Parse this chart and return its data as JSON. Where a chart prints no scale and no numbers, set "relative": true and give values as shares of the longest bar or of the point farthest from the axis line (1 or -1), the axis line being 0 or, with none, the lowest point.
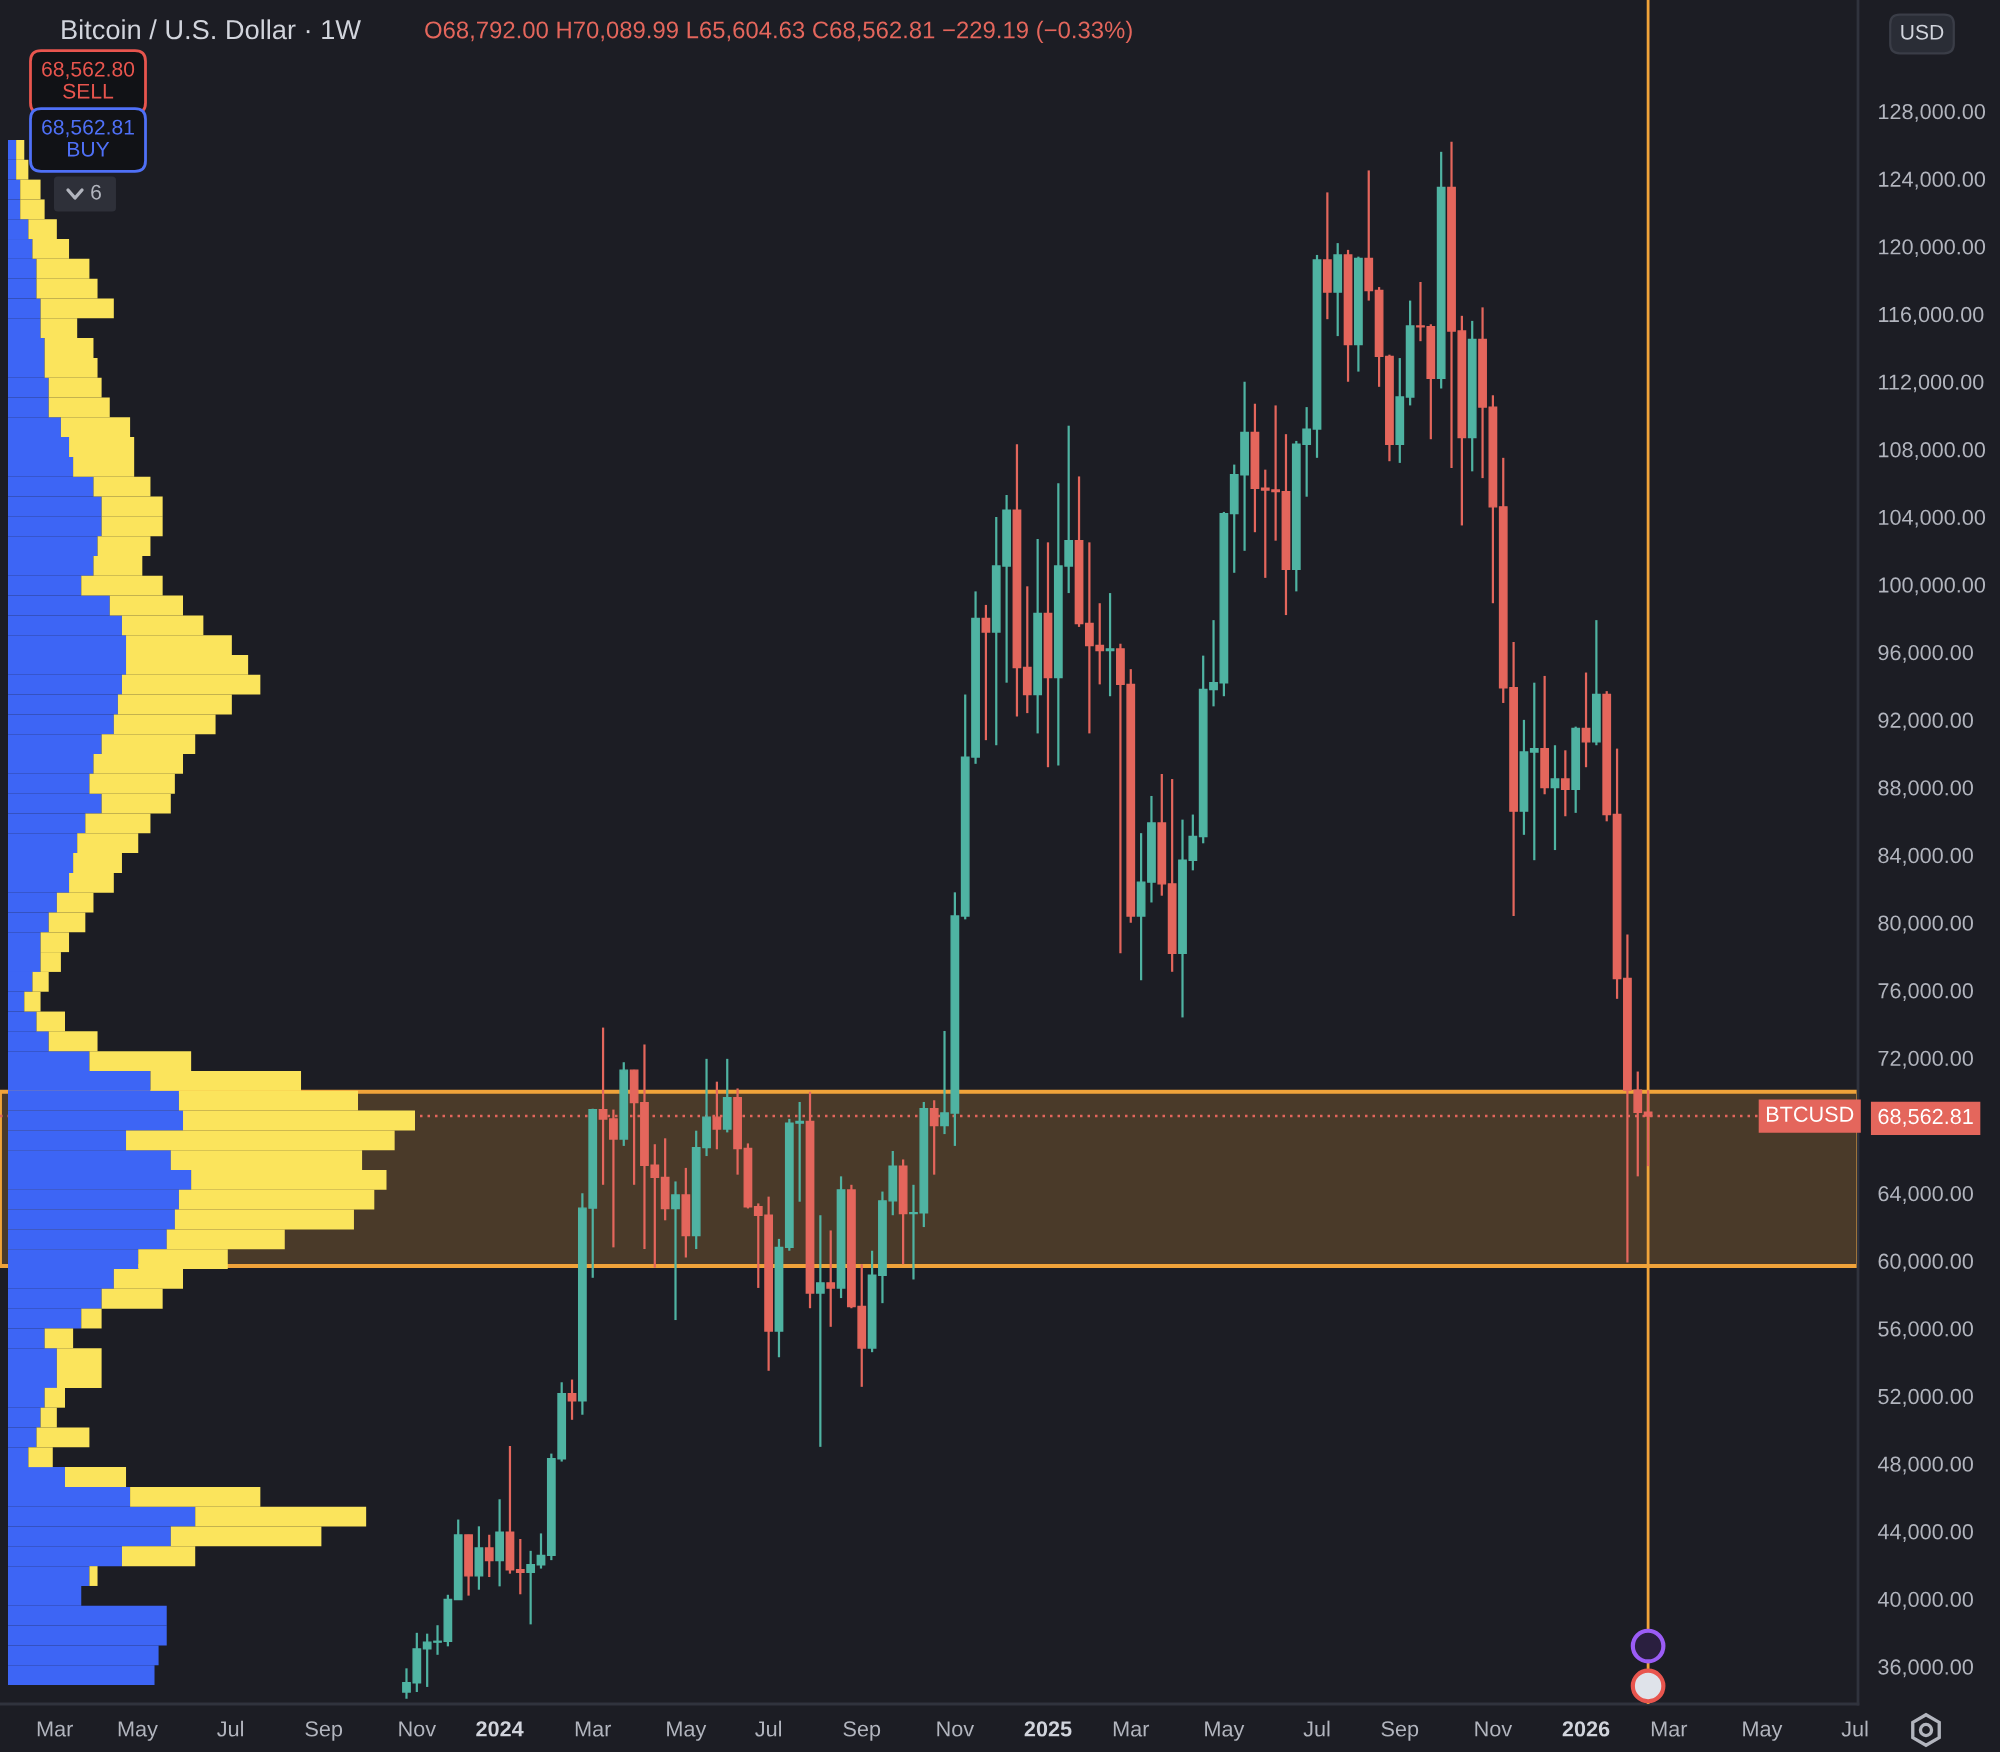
{
  "chart_data": [
    {
      "type": "candlestick",
      "title": "Bitcoin / U.S. Dollar · 1W",
      "subtitle": "O68,792.00 H70,089.99 L65,604.63 C68,562.81 −229.19 (−0.33%)",
      "x": [
        "2023-10-30",
        "2023-11-06",
        "2023-11-13",
        "2023-11-20",
        "2023-11-27",
        "2023-12-04",
        "2023-12-11",
        "2023-12-18",
        "2023-12-25",
        "2024-01-01",
        "2024-01-08",
        "2024-01-15",
        "2024-01-22",
        "2024-01-29",
        "2024-02-05",
        "2024-02-12",
        "2024-02-19",
        "2024-02-26",
        "2024-03-04",
        "2024-03-11",
        "2024-03-18",
        "2024-03-25",
        "2024-04-01",
        "2024-04-08",
        "2024-04-15",
        "2024-04-22",
        "2024-04-29",
        "2024-05-06",
        "2024-05-13",
        "2024-05-20",
        "2024-05-27",
        "2024-06-03",
        "2024-06-10",
        "2024-06-17",
        "2024-06-24",
        "2024-07-01",
        "2024-07-08",
        "2024-07-15",
        "2024-07-22",
        "2024-07-29",
        "2024-08-05",
        "2024-08-12",
        "2024-08-19",
        "2024-08-26",
        "2024-09-02",
        "2024-09-09",
        "2024-09-16",
        "2024-09-23",
        "2024-09-30",
        "2024-10-07",
        "2024-10-14",
        "2024-10-21",
        "2024-10-28",
        "2024-11-04",
        "2024-11-11",
        "2024-11-18",
        "2024-11-25",
        "2024-12-02",
        "2024-12-09",
        "2024-12-16",
        "2024-12-23",
        "2024-12-30",
        "2025-01-06",
        "2025-01-13",
        "2025-01-20",
        "2025-01-27",
        "2025-02-03",
        "2025-02-10",
        "2025-02-17",
        "2025-02-24",
        "2025-03-03",
        "2025-03-10",
        "2025-03-17",
        "2025-03-24",
        "2025-03-31",
        "2025-04-07",
        "2025-04-14",
        "2025-04-21",
        "2025-04-28",
        "2025-05-05",
        "2025-05-12",
        "2025-05-19",
        "2025-05-26",
        "2025-06-02",
        "2025-06-09",
        "2025-06-16",
        "2025-06-23",
        "2025-06-30",
        "2025-07-07",
        "2025-07-14",
        "2025-07-21",
        "2025-07-28",
        "2025-08-04",
        "2025-08-11",
        "2025-08-18",
        "2025-08-25",
        "2025-09-01",
        "2025-09-08",
        "2025-09-15",
        "2025-09-22",
        "2025-09-29",
        "2025-10-06",
        "2025-10-13",
        "2025-10-20",
        "2025-10-27",
        "2025-11-03",
        "2025-11-10",
        "2025-11-17",
        "2025-11-24",
        "2025-12-01",
        "2025-12-08",
        "2025-12-15",
        "2025-12-22",
        "2025-12-29",
        "2026-01-05",
        "2026-01-12",
        "2026-01-19",
        "2026-01-26",
        "2026-02-02",
        "2026-02-09",
        "2026-02-16"
      ],
      "ohlc": [
        [
          34500,
          35900,
          34100,
          35050
        ],
        [
          35050,
          38000,
          34500,
          37050
        ],
        [
          37050,
          37950,
          34800,
          37450
        ],
        [
          37450,
          38450,
          36700,
          37500
        ],
        [
          37500,
          40250,
          37200,
          39970
        ],
        [
          39970,
          44700,
          39950,
          43790
        ],
        [
          43790,
          43800,
          40200,
          41370
        ],
        [
          41370,
          44300,
          40550,
          43020
        ],
        [
          43020,
          43800,
          41300,
          42270
        ],
        [
          42270,
          45900,
          40750,
          43950
        ],
        [
          43950,
          49050,
          41500,
          41730
        ],
        [
          41730,
          43550,
          40280,
          41580
        ],
        [
          41580,
          42850,
          38500,
          42030
        ],
        [
          42030,
          43880,
          41800,
          42580
        ],
        [
          42580,
          48600,
          42300,
          48300
        ],
        [
          48300,
          52820,
          48130,
          52140
        ],
        [
          52140,
          52980,
          50600,
          51730
        ],
        [
          51730,
          64000,
          50900,
          63120
        ],
        [
          63120,
          69000,
          59000,
          68950
        ],
        [
          68950,
          73800,
          64500,
          68390
        ],
        [
          68390,
          68950,
          60800,
          67210
        ],
        [
          67210,
          71750,
          66800,
          71280
        ],
        [
          71280,
          71300,
          64500,
          69360
        ],
        [
          69360,
          72800,
          60700,
          65660
        ],
        [
          65660,
          66900,
          59600,
          64940
        ],
        [
          64940,
          67250,
          62400,
          63100
        ],
        [
          63100,
          64700,
          56500,
          63900
        ],
        [
          63900,
          65500,
          60200,
          61500
        ],
        [
          61500,
          67700,
          60700,
          66700
        ],
        [
          66700,
          71950,
          66200,
          68500
        ],
        [
          68500,
          70600,
          66600,
          67800
        ],
        [
          67800,
          71950,
          67600,
          69650
        ],
        [
          69650,
          70200,
          65100,
          66650
        ],
        [
          66650,
          66950,
          63100,
          63200
        ],
        [
          63200,
          63400,
          58400,
          62700
        ],
        [
          62700,
          63800,
          53500,
          55850
        ],
        [
          55850,
          61300,
          54300,
          60800
        ],
        [
          60800,
          68400,
          60600,
          68150
        ],
        [
          68150,
          69400,
          63500,
          68250
        ],
        [
          68250,
          70000,
          57200,
          58100
        ],
        [
          58100,
          62700,
          49000,
          58700
        ],
        [
          58700,
          61800,
          56100,
          58400
        ],
        [
          58400,
          65000,
          57800,
          64200
        ],
        [
          64200,
          64500,
          57200,
          57300
        ],
        [
          57300,
          59800,
          52550,
          54850
        ],
        [
          54850,
          60600,
          54600,
          59150
        ],
        [
          59150,
          64100,
          57500,
          63550
        ],
        [
          63550,
          66500,
          62700,
          65600
        ],
        [
          65600,
          66000,
          59800,
          62800
        ],
        [
          62800,
          64500,
          58900,
          62850
        ],
        [
          62850,
          69400,
          62000,
          69000
        ],
        [
          69000,
          69500,
          65100,
          68000
        ],
        [
          68000,
          73600,
          67500,
          68750
        ],
        [
          68750,
          81800,
          66800,
          80400
        ],
        [
          80400,
          93500,
          80200,
          89800
        ],
        [
          89800,
          99600,
          89400,
          98000
        ],
        [
          98000,
          98800,
          90800,
          97200
        ],
        [
          97200,
          104000,
          90500,
          101100
        ],
        [
          101100,
          105300,
          94200,
          104400
        ],
        [
          104400,
          108300,
          92200,
          95100
        ],
        [
          95100,
          99900,
          92400,
          93500
        ],
        [
          93500,
          102700,
          91200,
          98300
        ],
        [
          98300,
          102500,
          89200,
          94500
        ],
        [
          94500,
          106000,
          89300,
          101100
        ],
        [
          101100,
          109400,
          99500,
          102600
        ],
        [
          102600,
          106400,
          97500,
          97700
        ],
        [
          97700,
          102500,
          91200,
          96400
        ],
        [
          96400,
          98900,
          94100,
          96100
        ],
        [
          96100,
          99500,
          93400,
          96200
        ],
        [
          96200,
          96500,
          78200,
          94100
        ],
        [
          94100,
          95000,
          80000,
          80400
        ],
        [
          80400,
          85300,
          76600,
          82400
        ],
        [
          82400,
          87500,
          81200,
          85900
        ],
        [
          85900,
          88800,
          81600,
          82300
        ],
        [
          82300,
          88500,
          77100,
          78200
        ],
        [
          78200,
          86100,
          74400,
          83700
        ],
        [
          83700,
          86400,
          83100,
          85100
        ],
        [
          85100,
          95800,
          84700,
          93800
        ],
        [
          93800,
          97900,
          92800,
          94200
        ],
        [
          94200,
          104300,
          93400,
          104200
        ],
        [
          104200,
          107100,
          100700,
          106500
        ],
        [
          106500,
          112000,
          102000,
          109000
        ],
        [
          109000,
          110700,
          103100,
          105700
        ],
        [
          105700,
          106800,
          100400,
          105600
        ],
        [
          105600,
          110600,
          102600,
          105500
        ],
        [
          105500,
          108900,
          98200,
          100900
        ],
        [
          100900,
          108500,
          99600,
          108300
        ],
        [
          108300,
          110500,
          105200,
          109200
        ],
        [
          109200,
          119500,
          107500,
          119200
        ],
        [
          119200,
          123200,
          115700,
          117300
        ],
        [
          117300,
          120200,
          114700,
          119500
        ],
        [
          119500,
          119800,
          112000,
          114200
        ],
        [
          114200,
          119400,
          112600,
          119300
        ],
        [
          119300,
          124500,
          116800,
          117400
        ],
        [
          117400,
          117600,
          111700,
          113500
        ],
        [
          113500,
          113600,
          107300,
          108300
        ],
        [
          108300,
          113400,
          107200,
          111100
        ],
        [
          111100,
          116800,
          110600,
          115300
        ],
        [
          115300,
          117900,
          114400,
          115250
        ],
        [
          115250,
          115400,
          108600,
          112200
        ],
        [
          112200,
          125600,
          111600,
          123500
        ],
        [
          123500,
          126200,
          106900,
          115000
        ],
        [
          115000,
          115900,
          103500,
          108700
        ],
        [
          108700,
          115600,
          106700,
          114500
        ],
        [
          114500,
          116400,
          106300,
          110500
        ],
        [
          110500,
          111200,
          98900,
          104600
        ],
        [
          104600,
          107500,
          93000,
          93900
        ],
        [
          93900,
          96600,
          80400,
          86600
        ],
        [
          86600,
          92000,
          85200,
          90100
        ],
        [
          90100,
          94200,
          83700,
          90300
        ],
        [
          90300,
          94600,
          87600,
          88000
        ],
        [
          88000,
          90500,
          84300,
          88500
        ],
        [
          88500,
          90200,
          86300,
          87900
        ],
        [
          87900,
          91600,
          86500,
          91500
        ],
        [
          91500,
          94800,
          89200,
          90700
        ],
        [
          90700,
          97900,
          90500,
          93500
        ],
        [
          93500,
          93700,
          86000,
          86400
        ],
        [
          86400,
          90300,
          75500,
          76700
        ],
        [
          76700,
          79300,
          59900,
          70100
        ],
        [
          70100,
          71200,
          65000,
          68792
        ],
        [
          68792,
          70089.99,
          65604.63,
          68562.81
        ]
      ],
      "colors": [
        "#4fb3a2",
        "#4fb3a2",
        "#4fb3a2",
        "#4fb3a2",
        "#4fb3a2",
        "#4fb3a2",
        "#e4665c",
        "#4fb3a2",
        "#e4665c",
        "#4fb3a2",
        "#e4665c",
        "#e4665c",
        "#4fb3a2",
        "#4fb3a2",
        "#4fb3a2",
        "#4fb3a2",
        "#e4665c",
        "#4fb3a2",
        "#4fb3a2",
        "#e4665c",
        "#e4665c",
        "#4fb3a2",
        "#e4665c",
        "#e4665c",
        "#e4665c",
        "#e4665c",
        "#4fb3a2",
        "#e4665c",
        "#4fb3a2",
        "#4fb3a2",
        "#e4665c",
        "#4fb3a2",
        "#e4665c",
        "#e4665c",
        "#e4665c",
        "#e4665c",
        "#4fb3a2",
        "#4fb3a2",
        "#4fb3a2",
        "#e4665c",
        "#4fb3a2",
        "#e4665c",
        "#4fb3a2",
        "#e4665c",
        "#e4665c",
        "#4fb3a2",
        "#4fb3a2",
        "#4fb3a2",
        "#e4665c",
        "#4fb3a2",
        "#4fb3a2",
        "#e4665c",
        "#4fb3a2",
        "#4fb3a2",
        "#4fb3a2",
        "#4fb3a2",
        "#e4665c",
        "#4fb3a2",
        "#4fb3a2",
        "#e4665c",
        "#e4665c",
        "#4fb3a2",
        "#e4665c",
        "#4fb3a2",
        "#4fb3a2",
        "#e4665c",
        "#e4665c",
        "#e4665c",
        "#4fb3a2",
        "#e4665c",
        "#e4665c",
        "#4fb3a2",
        "#4fb3a2",
        "#e4665c",
        "#e4665c",
        "#4fb3a2",
        "#4fb3a2",
        "#4fb3a2",
        "#4fb3a2",
        "#4fb3a2",
        "#4fb3a2",
        "#4fb3a2",
        "#e4665c",
        "#e4665c",
        "#e4665c",
        "#e4665c",
        "#4fb3a2",
        "#4fb3a2",
        "#4fb3a2",
        "#e4665c",
        "#4fb3a2",
        "#e4665c",
        "#4fb3a2",
        "#e4665c",
        "#e4665c",
        "#e4665c",
        "#4fb3a2",
        "#4fb3a2",
        "#e4665c",
        "#e4665c",
        "#4fb3a2",
        "#e4665c",
        "#e4665c",
        "#4fb3a2",
        "#e4665c",
        "#e4665c",
        "#e4665c",
        "#e4665c",
        "#4fb3a2",
        "#4fb3a2",
        "#e4665c",
        "#4fb3a2",
        "#e4665c",
        "#4fb3a2",
        "#e4665c",
        "#4fb3a2",
        "#e4665c",
        "#e4665c",
        "#e4665c",
        "#e4665c",
        "#e4665c"
      ],
      "xlim": [
        "2023-01-28",
        "2026-07-08"
      ],
      "xticks": [
        {
          "value": "2023-03-06",
          "label": "Mar"
        },
        {
          "value": "2023-05-01",
          "label": "May"
        },
        {
          "value": "2023-07-03",
          "label": "Jul"
        },
        {
          "value": "2023-09-04",
          "label": "Sep"
        },
        {
          "value": "2023-11-06",
          "label": "Nov"
        },
        {
          "value": "2024-01-01",
          "label": "2024"
        },
        {
          "value": "2024-03-04",
          "label": "Mar"
        },
        {
          "value": "2024-05-06",
          "label": "May"
        },
        {
          "value": "2024-07-01",
          "label": "Jul"
        },
        {
          "value": "2024-09-02",
          "label": "Sep"
        },
        {
          "value": "2024-11-04",
          "label": "Nov"
        },
        {
          "value": "2025-01-06",
          "label": "2025"
        },
        {
          "value": "2025-03-03",
          "label": "Mar"
        },
        {
          "value": "2025-05-05",
          "label": "May"
        },
        {
          "value": "2025-07-07",
          "label": "Jul"
        },
        {
          "value": "2025-09-01",
          "label": "Sep"
        },
        {
          "value": "2025-11-03",
          "label": "Nov"
        },
        {
          "value": "2026-01-05",
          "label": "2026"
        },
        {
          "value": "2026-03-02",
          "label": "Mar"
        },
        {
          "value": "2026-05-04",
          "label": "May"
        },
        {
          "value": "2026-07-06",
          "label": "Jul"
        }
      ],
      "ylim": [
        33790,
        134580
      ],
      "yticks": [
        {
          "value": 36000,
          "label": "36,000.00"
        },
        {
          "value": 40000,
          "label": "40,000.00"
        },
        {
          "value": 44000,
          "label": "44,000.00"
        },
        {
          "value": 48000,
          "label": "48,000.00"
        },
        {
          "value": 52000,
          "label": "52,000.00"
        },
        {
          "value": 56000,
          "label": "56,000.00"
        },
        {
          "value": 60000,
          "label": "60,000.00"
        },
        {
          "value": 64000,
          "label": "64,000.00"
        },
        {
          "value": 68562.81,
          "label": "68,562.81"
        },
        {
          "value": 72000,
          "label": "72,000.00"
        },
        {
          "value": 76000,
          "label": "76,000.00"
        },
        {
          "value": 80000,
          "label": "80,000.00"
        },
        {
          "value": 84000,
          "label": "84,000.00"
        },
        {
          "value": 88000,
          "label": "88,000.00"
        },
        {
          "value": 92000,
          "label": "92,000.00"
        },
        {
          "value": 96000,
          "label": "96,000.00"
        },
        {
          "value": 100000,
          "label": "100,000.00"
        },
        {
          "value": 104000,
          "label": "104,000.00"
        },
        {
          "value": 108000,
          "label": "108,000.00"
        },
        {
          "value": 112000,
          "label": "112,000.00"
        },
        {
          "value": 116000,
          "label": "116,000.00"
        },
        {
          "value": 120000,
          "label": "120,000.00"
        },
        {
          "value": 124000,
          "label": "124,000.00"
        },
        {
          "value": 128000,
          "label": "128,000.00"
        }
      ],
      "ref_lines": [
        {
          "axis": "y",
          "value": 68562.81,
          "label": "BTCUSD",
          "color": "#e4665c",
          "line_style": "dotted"
        },
        {
          "axis": "x",
          "value": "2026-02-16",
          "color": "#f0a33a",
          "line_style": "solid"
        }
      ],
      "bands": [
        {
          "axis": "y",
          "from": 59700,
          "to": 70000,
          "color": "#f0a33a"
        }
      ],
      "annotations": [
        "68,562.80\nSELL",
        "68,562.81\nBUY",
        "6",
        "USD"
      ]
    },
    {
      "type": "bar",
      "orientation": "horizontal",
      "stacked": true,
      "relative": true,
      "categories": [
        null,
        null,
        null,
        null,
        null,
        null,
        null,
        null,
        null,
        null,
        null,
        null,
        null,
        null,
        null,
        null,
        null,
        null,
        null,
        null,
        null,
        null,
        null,
        null,
        null,
        null,
        null,
        null,
        null,
        null,
        null,
        null,
        null,
        null,
        null,
        null,
        null,
        null,
        null,
        null,
        null,
        null,
        null,
        null,
        null,
        null,
        null,
        null,
        null,
        null,
        null,
        null,
        null,
        null,
        null,
        null,
        null,
        null,
        null,
        null,
        null,
        null,
        null,
        null,
        null,
        null,
        null,
        null,
        null,
        null,
        null,
        null,
        null,
        null,
        null,
        null,
        null,
        null
      ],
      "series": [
        {
          "color": "#3d65f5",
          "values": [
            0.02,
            0.02,
            0.03,
            0.03,
            0.05,
            0.06,
            0.07,
            0.07,
            0.08,
            0.08,
            0.09,
            0.09,
            0.1,
            0.1,
            0.13,
            0.15,
            0.16,
            0.21,
            0.23,
            0.23,
            0.22,
            0.21,
            0.18,
            0.25,
            0.28,
            0.29,
            0.29,
            0.28,
            0.27,
            0.26,
            0.23,
            0.21,
            0.2,
            0.23,
            0.19,
            0.17,
            0.16,
            0.15,
            0.12,
            0.1,
            0.08,
            0.08,
            0.06,
            0.04,
            0.07,
            0.1,
            0.2,
            0.35,
            0.42,
            0.43,
            0.29,
            0.4,
            0.45,
            0.42,
            0.41,
            0.39,
            0.32,
            0.26,
            0.23,
            0.18,
            0.09,
            0.12,
            0.12,
            0.09,
            0.08,
            0.07,
            0.05,
            0.14,
            0.3,
            0.46,
            0.4,
            0.28,
            0.2,
            0.18,
            0.39,
            0.39,
            0.37,
            0.36
          ]
        },
        {
          "color": "#fbe45c",
          "values": [
            0.02,
            0.03,
            0.05,
            0.06,
            0.07,
            0.09,
            0.13,
            0.15,
            0.18,
            0.09,
            0.12,
            0.13,
            0.13,
            0.15,
            0.17,
            0.16,
            0.15,
            0.14,
            0.15,
            0.15,
            0.13,
            0.12,
            0.2,
            0.18,
            0.2,
            0.26,
            0.3,
            0.34,
            0.28,
            0.25,
            0.23,
            0.22,
            0.21,
            0.17,
            0.16,
            0.15,
            0.12,
            0.11,
            0.09,
            0.09,
            0.07,
            0.05,
            0.04,
            0.04,
            0.07,
            0.12,
            0.25,
            0.37,
            0.44,
            0.57,
            0.66,
            0.47,
            0.48,
            0.48,
            0.44,
            0.29,
            0.22,
            0.17,
            0.15,
            0.05,
            0.07,
            0.11,
            0.11,
            0.05,
            0.04,
            0.13,
            0.06,
            0.15,
            0.32,
            0.42,
            0.37,
            0.18,
            0.02,
            0,
            0,
            0,
            0,
            0
          ]
        }
      ]
    }
  ]
}
